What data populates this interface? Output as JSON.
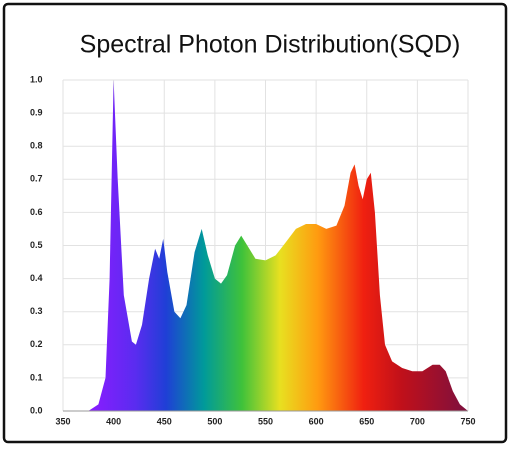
{
  "chart_data": {
    "type": "area",
    "title": "Spectral Photon Distribution(SQD)",
    "x": [
      375,
      385,
      392,
      396,
      400,
      404,
      410,
      418,
      422,
      428,
      435,
      441,
      445,
      449,
      453,
      460,
      466,
      472,
      480,
      487,
      493,
      500,
      506,
      512,
      520,
      526,
      532,
      540,
      550,
      560,
      570,
      580,
      590,
      600,
      610,
      620,
      628,
      634,
      638,
      642,
      646,
      650,
      654,
      658,
      663,
      668,
      675,
      685,
      695,
      705,
      715,
      722,
      728,
      735,
      742,
      750
    ],
    "values": [
      0,
      0.02,
      0.1,
      0.4,
      1.0,
      0.7,
      0.35,
      0.21,
      0.2,
      0.26,
      0.4,
      0.49,
      0.46,
      0.52,
      0.42,
      0.3,
      0.28,
      0.32,
      0.48,
      0.55,
      0.47,
      0.4,
      0.385,
      0.41,
      0.5,
      0.53,
      0.5,
      0.46,
      0.455,
      0.47,
      0.51,
      0.55,
      0.565,
      0.565,
      0.55,
      0.56,
      0.62,
      0.72,
      0.745,
      0.68,
      0.64,
      0.7,
      0.72,
      0.6,
      0.35,
      0.2,
      0.15,
      0.13,
      0.12,
      0.12,
      0.14,
      0.14,
      0.12,
      0.06,
      0.02,
      0
    ],
    "xlim": [
      350,
      750
    ],
    "xticks": [
      350,
      400,
      450,
      500,
      550,
      600,
      650,
      700,
      750
    ],
    "ylim": [
      0,
      1
    ],
    "yticks": [
      {
        "value": 0,
        "label": "0.0"
      },
      0.1,
      0.2,
      0.3,
      0.4,
      0.5,
      0.6,
      0.7,
      0.8,
      0.9,
      {
        "value": 1,
        "label": "1.0"
      }
    ],
    "grid": true
  }
}
